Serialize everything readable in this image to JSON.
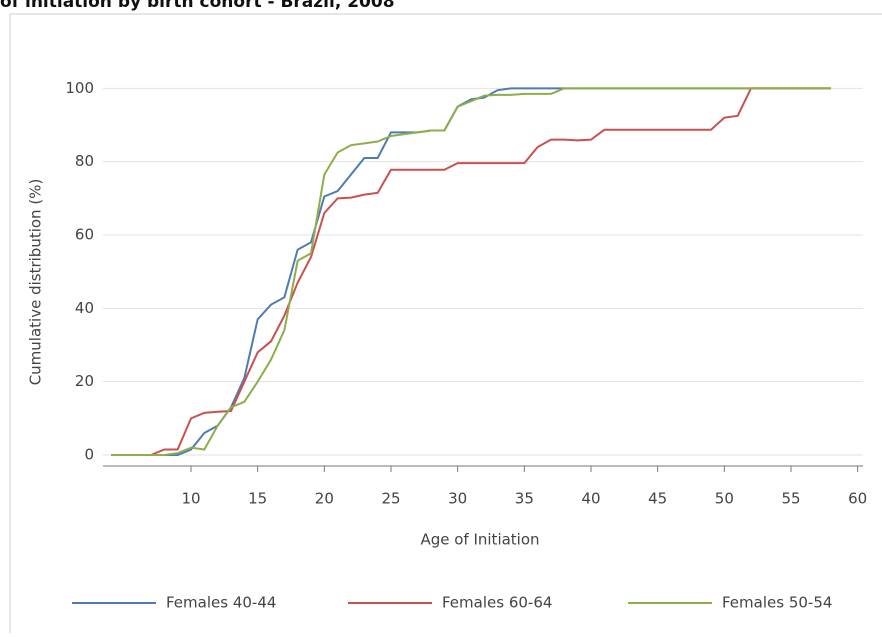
{
  "chart_data": {
    "type": "line",
    "title": "of initiation by birth cohort - Brazil, 2008",
    "x_label": "Age of Initiation",
    "y_label": "Cumulative distribution (%)",
    "x": [
      4,
      5,
      6,
      7,
      8,
      9,
      10,
      11,
      12,
      13,
      14,
      15,
      16,
      17,
      18,
      19,
      20,
      21,
      22,
      23,
      24,
      25,
      26,
      27,
      28,
      29,
      30,
      31,
      32,
      33,
      34,
      35,
      36,
      37,
      38,
      39,
      40,
      41,
      42,
      43,
      44,
      45,
      46,
      47,
      48,
      49,
      50,
      51,
      52,
      53,
      54,
      55,
      56,
      57,
      58
    ],
    "series": [
      {
        "name": "Females 40-44",
        "color": "#4f7bb5",
        "values": [
          0,
          0,
          0,
          0,
          0,
          0,
          1.5,
          6,
          8,
          13,
          21,
          37,
          41,
          43,
          56,
          58,
          70.5,
          72,
          76.5,
          81,
          81,
          88,
          88,
          88,
          88.5,
          88.5,
          95,
          97,
          97.5,
          99.5,
          100,
          100,
          100,
          100,
          100,
          100,
          100,
          100,
          100,
          100,
          100,
          100,
          100,
          100,
          100,
          100,
          100,
          100,
          100,
          100,
          100,
          100,
          100,
          100,
          100
        ]
      },
      {
        "name": "Females 60-64",
        "color": "#c9504f",
        "values": [
          0,
          0,
          0,
          0,
          1.5,
          1.5,
          10,
          11.5,
          11.8,
          12,
          20,
          28,
          31,
          38,
          47,
          54,
          66,
          70,
          70.2,
          71,
          71.5,
          77.8,
          77.8,
          77.8,
          77.8,
          77.8,
          79.6,
          79.6,
          79.6,
          79.6,
          79.6,
          79.6,
          84,
          86,
          86,
          85.8,
          86,
          88.7,
          88.7,
          88.7,
          88.7,
          88.7,
          88.7,
          88.7,
          88.7,
          88.7,
          92,
          92.5,
          100,
          100,
          100,
          100,
          100,
          100,
          100
        ]
      },
      {
        "name": "Females 50-54",
        "color": "#8cae4b",
        "values": [
          0,
          0,
          0,
          0,
          0,
          0.5,
          2,
          1.5,
          8,
          13,
          14.5,
          20,
          26,
          34,
          53,
          55,
          76.5,
          82.5,
          84.5,
          85,
          85.5,
          87,
          87.5,
          88,
          88.5,
          88.5,
          95,
          96.5,
          98,
          98.2,
          98.2,
          98.5,
          98.5,
          98.5,
          100,
          100,
          100,
          100,
          100,
          100,
          100,
          100,
          100,
          100,
          100,
          100,
          100,
          100,
          100,
          100,
          100,
          100,
          100,
          100,
          100
        ]
      }
    ],
    "xlim": [
      3.4,
      60.4
    ],
    "xticks": [
      10,
      15,
      20,
      25,
      30,
      35,
      40,
      45,
      50,
      55,
      60
    ],
    "ylim": [
      -3,
      105
    ],
    "yticks": [
      0,
      20,
      40,
      60,
      80,
      100
    ],
    "grid": true
  }
}
